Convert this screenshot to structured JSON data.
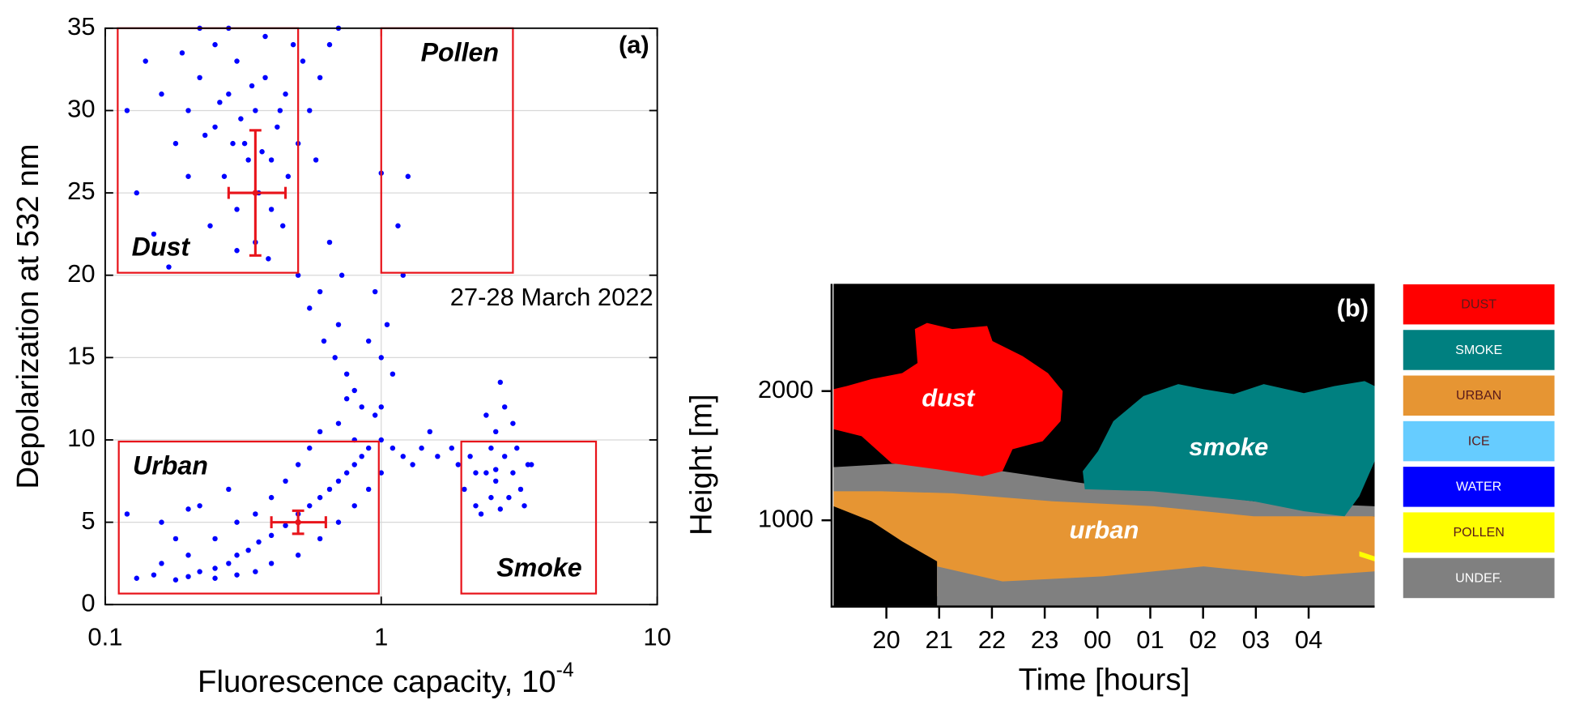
{
  "chart_data": [
    {
      "type": "scatter",
      "label": "(a)",
      "annotation": "27-28 March 2022",
      "xlabel": {
        "text": "Fluorescence capacity, 10",
        "superscript": "-4"
      },
      "ylabel": "Depolarization at 532 nm",
      "xscale": "log",
      "xlim": [
        0.1,
        10
      ],
      "xticks": [
        0.1,
        1,
        10
      ],
      "ylim": [
        0,
        35
      ],
      "yticks": [
        0,
        5,
        10,
        15,
        20,
        25,
        30,
        35
      ],
      "grid": true,
      "color": "#0000ff",
      "x": [
        0.2,
        0.22,
        0.25,
        0.28,
        0.3,
        0.32,
        0.35,
        0.38,
        0.4,
        0.42,
        0.45,
        0.27,
        0.3,
        0.33,
        0.36,
        0.25,
        0.28,
        0.18,
        0.16,
        0.14,
        0.12,
        0.13,
        0.15,
        0.2,
        0.24,
        0.35,
        0.4,
        0.46,
        0.5,
        0.55,
        0.6,
        0.65,
        0.7,
        0.52,
        0.48,
        0.38,
        0.22,
        0.19,
        0.26,
        0.31,
        0.34,
        0.29,
        0.23,
        0.43,
        0.37,
        0.44,
        0.39,
        0.3,
        0.17,
        0.58,
        0.5,
        0.55,
        0.6,
        0.62,
        0.68,
        0.7,
        0.75,
        0.8,
        0.85,
        0.72,
        0.65,
        0.9,
        1.0,
        1.1,
        1.05,
        1.2,
        1.15,
        1.25,
        1.0,
        0.95,
        0.7,
        0.8,
        0.9,
        1.0,
        1.1,
        1.2,
        1.4,
        1.6,
        1.8,
        1.5,
        1.3,
        0.95,
        1.0,
        0.75,
        0.85,
        0.13,
        0.15,
        0.18,
        0.2,
        0.22,
        0.25,
        0.28,
        0.3,
        0.33,
        0.36,
        0.4,
        0.45,
        0.5,
        0.55,
        0.6,
        0.65,
        0.7,
        0.75,
        0.8,
        0.2,
        0.18,
        0.16,
        0.25,
        0.3,
        0.35,
        0.4,
        0.45,
        0.5,
        0.55,
        0.6,
        0.5,
        0.6,
        0.7,
        0.8,
        0.9,
        1.0,
        0.4,
        0.3,
        0.25,
        0.35,
        0.12,
        0.16,
        0.22,
        0.28,
        0.2,
        2.0,
        2.2,
        2.4,
        2.6,
        2.8,
        3.0,
        3.2,
        3.4,
        2.3,
        2.5,
        2.7,
        2.1,
        2.9,
        3.1,
        2.6,
        2.8,
        2.7,
        3.0,
        2.4,
        2.2,
        3.5,
        2.5,
        1.9,
        2.6,
        3.3
      ],
      "y": [
        30,
        32,
        29,
        31,
        33,
        28,
        30,
        32,
        27,
        29,
        31,
        26,
        24,
        27,
        25,
        34,
        35,
        28,
        31,
        33,
        30,
        25,
        22.5,
        26,
        23,
        22,
        24,
        26,
        28,
        30,
        32,
        34,
        35,
        33,
        34,
        34.5,
        35,
        33.5,
        30.5,
        29.5,
        31.5,
        28,
        28.5,
        30,
        27.5,
        23,
        21,
        21.5,
        20.5,
        27,
        20,
        18,
        19,
        16,
        15,
        17,
        14,
        13,
        12,
        20,
        22,
        16,
        15,
        14,
        17,
        20,
        23,
        26,
        26.2,
        19,
        11,
        10,
        9.5,
        10,
        9.5,
        9,
        9.5,
        9,
        9.5,
        10.5,
        8.5,
        11.5,
        12,
        12.5,
        9,
        1.6,
        1.8,
        1.5,
        1.7,
        2,
        2.2,
        2.5,
        3,
        3.3,
        3.8,
        4.2,
        4.8,
        5.5,
        6,
        6.5,
        7,
        7.5,
        8,
        8.5,
        3,
        4,
        2.5,
        4,
        5,
        5.5,
        6.5,
        7.5,
        8.5,
        9.5,
        10.5,
        3,
        4,
        5,
        6,
        7,
        8,
        2.5,
        1.8,
        1.6,
        2,
        5.5,
        5,
        6,
        7,
        5.8,
        7,
        6,
        8,
        7.5,
        9,
        8,
        7,
        8.5,
        5.5,
        6.5,
        5.8,
        9,
        6.5,
        9.5,
        10.5,
        12,
        13.5,
        11,
        11.5,
        8,
        8.5,
        9.5,
        8.5,
        8.2,
        6
      ],
      "error_bars": {
        "color": "#e8141b",
        "x": [
          0.35,
          0.5
        ],
        "x_low": [
          0.28,
          0.4
        ],
        "x_high": [
          0.45,
          0.63
        ],
        "y": [
          25,
          5
        ],
        "yerr": [
          3.8,
          0.7
        ]
      },
      "region_color": "#e8141b",
      "regions": [
        {
          "label": "Dust",
          "x": [
            0.111,
            0.5
          ],
          "y": [
            20.15,
            35
          ],
          "label_corner": "bottom-left"
        },
        {
          "label": "Pollen",
          "x": [
            1,
            3
          ],
          "y": [
            20.15,
            35
          ],
          "label_corner": "top-right"
        },
        {
          "label": "Urban",
          "x": [
            0.112,
            0.98
          ],
          "y": [
            0.67,
            9.9
          ],
          "label_corner": "top-left"
        },
        {
          "label": "Smoke",
          "x": [
            1.95,
            6
          ],
          "y": [
            0.67,
            9.9
          ],
          "label_corner": "bottom-right"
        }
      ]
    },
    {
      "type": "classification",
      "label": "(b)",
      "xlabel": "Time [hours]",
      "ylabel": "Height [m]",
      "background": "#000000",
      "xlim": [
        19,
        29.25
      ],
      "xticks": [
        20,
        21,
        22,
        23,
        {
          "value": 24,
          "label": "00"
        },
        {
          "value": 25,
          "label": "01"
        },
        {
          "value": 26,
          "label": "02"
        },
        {
          "value": 27,
          "label": "03"
        },
        {
          "value": 28,
          "label": "04"
        }
      ],
      "ylim": [
        340,
        2830
      ],
      "yticks": [
        1000,
        2000
      ],
      "series": [
        {
          "name": "DUST",
          "color": "#ff0000",
          "region_label": "dust",
          "regions": [
            {
              "x": [
                19,
                19.25,
                19.72,
                20.3,
                20.59,
                20.54,
                20.77,
                21.25,
                21.91,
                22.01,
                22.58,
                23.06,
                23.34,
                23.3,
                22.96,
                22.39,
                22.2,
                21.82,
                20.96,
                20.1,
                19.53,
                19
              ],
              "y": [
                2015,
                2039,
                2093,
                2139,
                2217,
                2480,
                2527,
                2480,
                2504,
                2387,
                2271,
                2139,
                2000,
                1767,
                1612,
                1550,
                1380,
                1341,
                1395,
                1442,
                1651,
                1705
              ]
            }
          ]
        },
        {
          "name": "SMOKE",
          "color": "#008080",
          "region_label": "smoke",
          "regions": [
            {
              "x": [
                23.76,
                23.72,
                24.01,
                24.3,
                24.87,
                25.53,
                26.01,
                26.58,
                27.15,
                27.91,
                28.49,
                29.06,
                29.25,
                29.25,
                28.96,
                28.68,
                27.91,
                26.96,
                25.06
              ],
              "y": [
                1240,
                1380,
                1535,
                1767,
                1961,
                2054,
                2015,
                1977,
                2054,
                1984,
                2039,
                2077,
                2039,
                1457,
                1186,
                1031,
                1070,
                1147,
                1225
              ]
            }
          ]
        },
        {
          "name": "URBAN",
          "color": "#e69533",
          "region_label": "urban",
          "regions": [
            {
              "x": [
                19,
                22.2,
                24.1,
                26.01,
                27.91,
                29.25,
                29.25,
                20.96,
                20.96,
                20.3,
                19.72,
                19
              ],
              "y": [
                1411,
                1318,
                1240,
                1147,
                1070,
                1031,
                450,
                411,
                682,
                837,
                992,
                1109
              ]
            }
          ]
        },
        {
          "name": "ICE",
          "color": "#66ccff",
          "regions": []
        },
        {
          "name": "WATER",
          "color": "#0000ff",
          "regions": []
        },
        {
          "name": "POLLEN",
          "color": "#ffff00",
          "regions": [
            {
              "x": [
                28.96,
                29.25,
                29.25,
                28.96
              ],
              "y": [
                760,
                721,
                682,
                721
              ]
            }
          ]
        },
        {
          "name": "UNDEF.",
          "color": "#808080",
          "regions": [
            {
              "x": [
                19,
                20.3,
                22.2,
                23.72,
                25.06,
                26.96,
                29.25,
                29.25,
                26.96,
                25.06,
                23.15,
                21.25,
                19.91,
                19
              ],
              "y": [
                1411,
                1442,
                1380,
                1287,
                1240,
                1147,
                1109,
                1031,
                1031,
                1109,
                1147,
                1209,
                1225,
                1225
              ]
            },
            {
              "x": [
                20.96,
                22.2,
                24.1,
                26.01,
                27.91,
                29.25,
                29.25,
                20.96
              ],
              "y": [
                643,
                527,
                566,
                643,
                566,
                605,
                341,
                341
              ]
            }
          ]
        }
      ]
    }
  ]
}
